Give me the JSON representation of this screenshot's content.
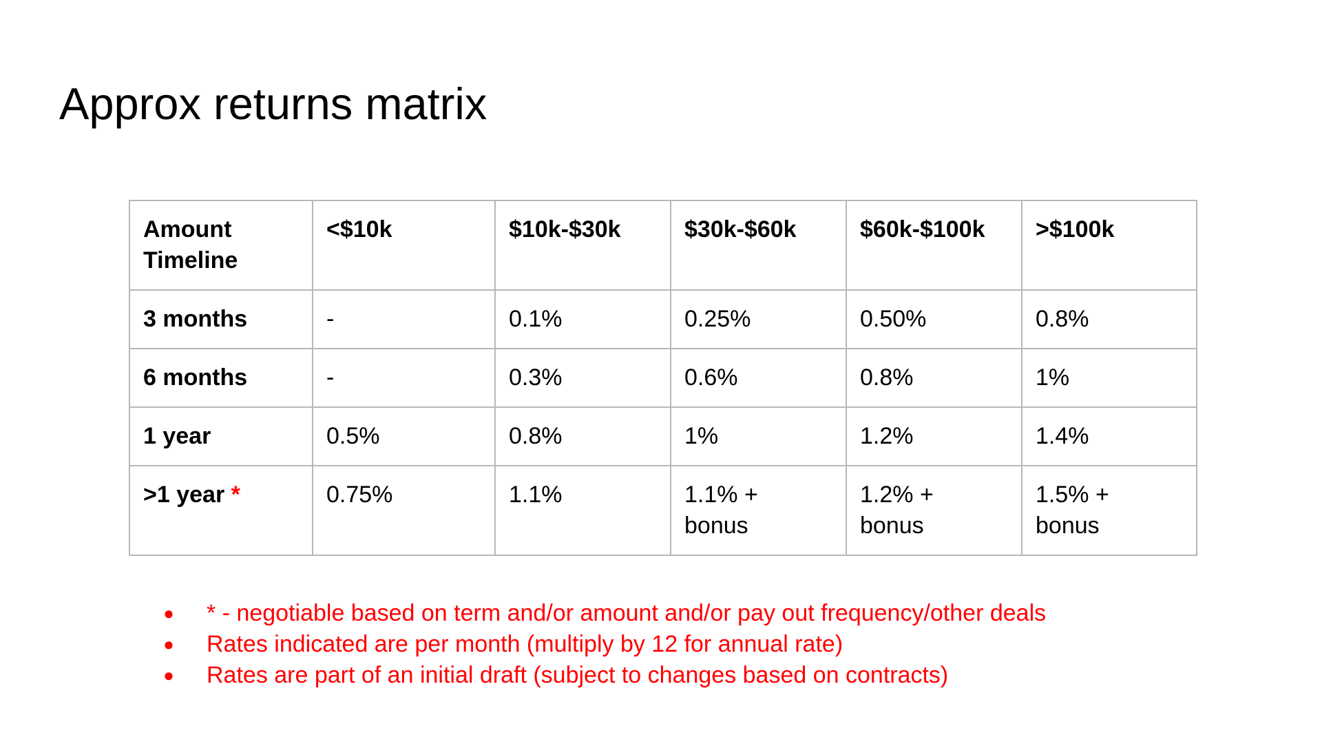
{
  "slide": {
    "title": "Approx returns matrix"
  },
  "table": {
    "corner_header": [
      "Amount",
      "Timeline"
    ],
    "column_headers": [
      "<$10k",
      "$10k-$30k",
      "$30k-$60k",
      "$60k-$100k",
      ">$100k"
    ],
    "rows": [
      {
        "label": "3 months",
        "marker": "",
        "cells": [
          [
            "-"
          ],
          [
            "0.1%"
          ],
          [
            "0.25%"
          ],
          [
            "0.50%"
          ],
          [
            "0.8%"
          ]
        ]
      },
      {
        "label": "6 months",
        "marker": "",
        "cells": [
          [
            "-"
          ],
          [
            "0.3%"
          ],
          [
            "0.6%"
          ],
          [
            "0.8%"
          ],
          [
            "1%"
          ]
        ]
      },
      {
        "label": "1 year",
        "marker": "",
        "cells": [
          [
            "0.5%"
          ],
          [
            "0.8%"
          ],
          [
            "1%"
          ],
          [
            "1.2%"
          ],
          [
            "1.4%"
          ]
        ]
      },
      {
        "label": ">1 year",
        "marker": "*",
        "cells": [
          [
            "0.75%"
          ],
          [
            "1.1%"
          ],
          [
            "1.1% +",
            "bonus"
          ],
          [
            "1.2% +",
            "bonus"
          ],
          [
            "1.5% +",
            "bonus"
          ]
        ]
      }
    ]
  },
  "notes": {
    "bullet_symbol": "●",
    "items": [
      "* - negotiable based on term and/or amount and/or pay out frequency/other deals",
      "Rates indicated are per month (multiply by 12 for annual rate)",
      "Rates are part of an initial draft (subject to changes based on contracts)"
    ]
  },
  "colors": {
    "note_text": "#ff0000",
    "asterisk": "#ff0000",
    "table_border": "#b7b7b7",
    "text": "#000000",
    "background": "#ffffff"
  }
}
